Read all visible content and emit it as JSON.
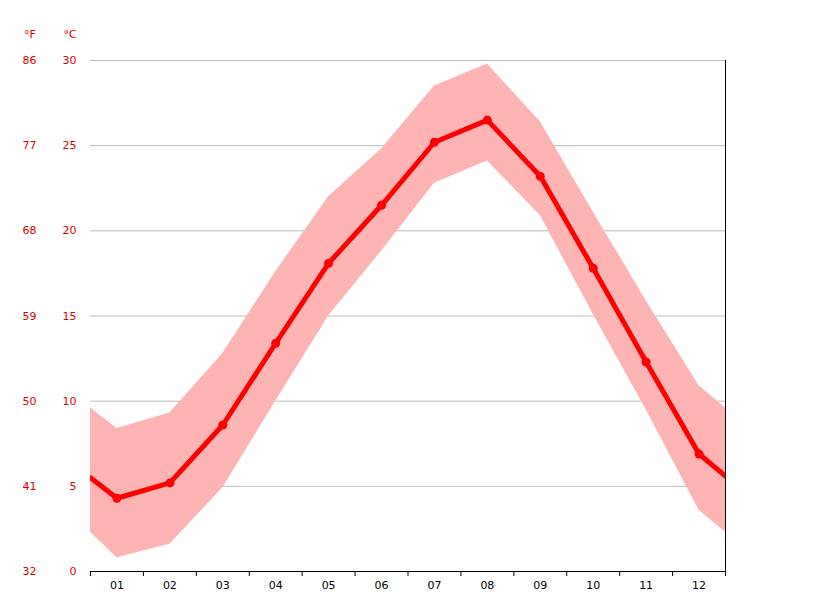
{
  "chart_data": {
    "type": "line",
    "x": [
      0.5,
      1,
      2,
      3,
      4,
      5,
      6,
      7,
      8,
      9,
      10,
      11,
      12,
      12.5
    ],
    "xlim": [
      0.5,
      12.5
    ],
    "xticks": [
      {
        "value": 1,
        "label": "01"
      },
      {
        "value": 2,
        "label": "02"
      },
      {
        "value": 3,
        "label": "03"
      },
      {
        "value": 4,
        "label": "04"
      },
      {
        "value": 5,
        "label": "05"
      },
      {
        "value": 6,
        "label": "06"
      },
      {
        "value": 7,
        "label": "07"
      },
      {
        "value": 8,
        "label": "08"
      },
      {
        "value": 9,
        "label": "09"
      },
      {
        "value": 10,
        "label": "10"
      },
      {
        "value": 11,
        "label": "11"
      },
      {
        "value": 12,
        "label": "12"
      }
    ],
    "y_label": "°C",
    "ylim": [
      0,
      30
    ],
    "yticks": [
      0,
      5,
      10,
      15,
      20,
      25,
      30
    ],
    "y2_label": "°F",
    "y2lim": [
      32,
      86
    ],
    "y2ticks": [
      32,
      41,
      50,
      59,
      68,
      77,
      86
    ],
    "grid": true,
    "series": [
      {
        "color": "#ff0000",
        "marker": "circle",
        "values": [
          5.5,
          4.3,
          5.2,
          8.6,
          13.4,
          18.1,
          21.5,
          25.2,
          26.5,
          23.2,
          17.8,
          12.3,
          6.9,
          5.6
        ]
      }
    ],
    "band": {
      "color": "#ffb4b4",
      "low": [
        2.3,
        0.8,
        1.6,
        4.9,
        10.0,
        15.0,
        18.8,
        22.8,
        24.1,
        20.9,
        15.1,
        9.5,
        3.6,
        2.3
      ],
      "high": [
        9.6,
        8.4,
        9.3,
        12.8,
        17.6,
        22.0,
        24.8,
        28.5,
        29.8,
        26.4,
        21.1,
        15.9,
        10.9,
        9.6
      ]
    }
  }
}
